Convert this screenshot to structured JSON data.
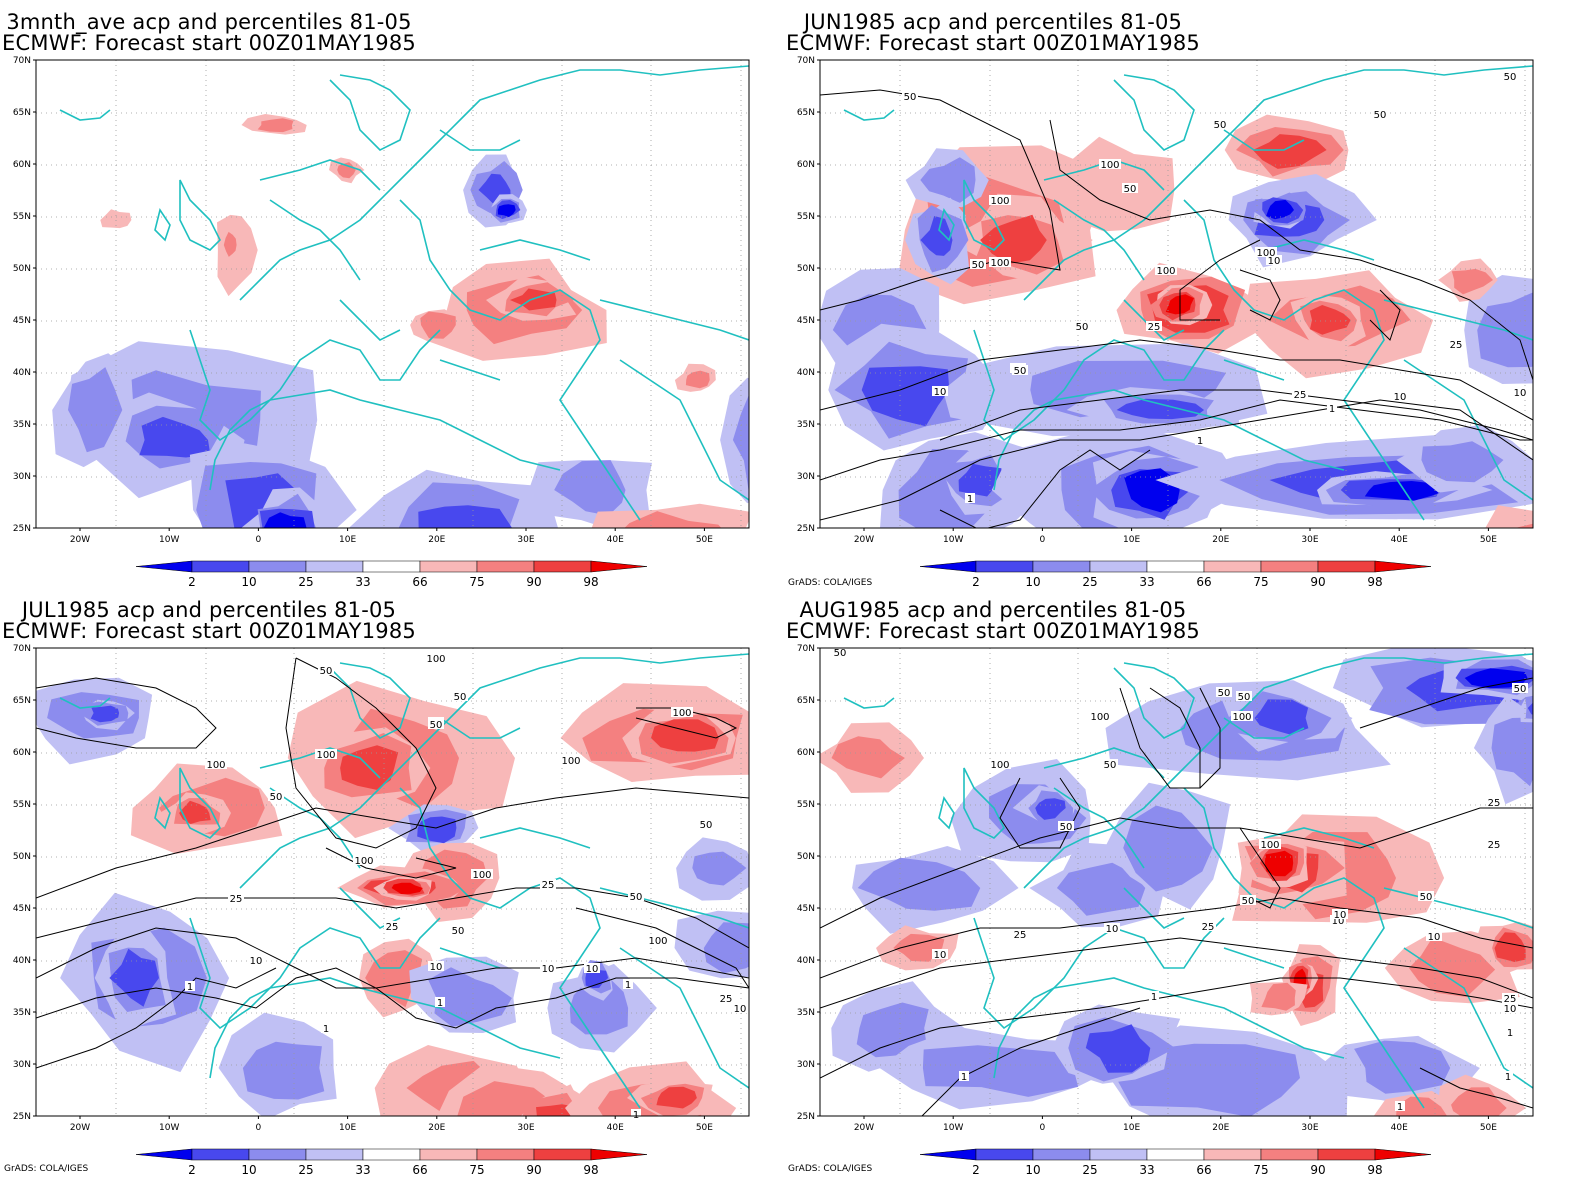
{
  "colors": {
    "blue_dark": "#0000ee",
    "blue_mid": "#4848ee",
    "blue_light": "#8c8cee",
    "blue_pale": "#c0c0f4",
    "red_pale": "#f8b8b8",
    "red_light": "#f48080",
    "red_mid": "#ee4040",
    "red_dark": "#ee0000",
    "coast": "#20c0c0",
    "contour": "#000000"
  },
  "legend": {
    "labels": [
      "2",
      "10",
      "25",
      "33",
      "66",
      "75",
      "90",
      "98"
    ]
  },
  "axes": {
    "lat_labels": [
      "70N",
      "65N",
      "60N",
      "55N",
      "50N",
      "45N",
      "40N",
      "35N",
      "30N",
      "25N"
    ],
    "lon_labels": [
      "20W",
      "10W",
      "0",
      "10E",
      "20E",
      "30E",
      "40E",
      "50E"
    ]
  },
  "credit": "GrADS: COLA/IGES",
  "panels": [
    {
      "title_line1": "3mnth_ave acp and percentiles 81-05",
      "title_line2": "ECMWF: Forecast start 00Z01MAY1985",
      "contour_labels": [],
      "show_credit": false
    },
    {
      "title_line1": "JUN1985 acp and percentiles 81-05",
      "title_line2": "ECMWF: Forecast start 00Z01MAY1985",
      "contour_labels": [
        "50",
        "50",
        "50",
        "100",
        "50",
        "100",
        "50",
        "100",
        "100",
        "50",
        "10",
        "25",
        "50",
        "25",
        "100",
        "25",
        "50",
        "10",
        "10",
        "1",
        "25",
        "10",
        "1",
        "1"
      ],
      "show_credit": true
    },
    {
      "title_line1": "JUL1985 acp and percentiles 81-05",
      "title_line2": "ECMWF: Forecast start 00Z01MAY1985",
      "contour_labels": [
        "100",
        "50",
        "50",
        "50",
        "50",
        "100",
        "100",
        "100",
        "100",
        "50",
        "50",
        "100",
        "100",
        "25",
        "25",
        "25",
        "50",
        "10",
        "50",
        "100",
        "10",
        "10",
        "10",
        "1",
        "1",
        "1",
        "25",
        "10",
        "1",
        "1"
      ],
      "show_credit": true
    },
    {
      "title_line1": "AUG1985 acp and percentiles 81-05",
      "title_line2": "ECMWF: Forecast start 00Z01MAY1985",
      "contour_labels": [
        "50",
        "50",
        "50",
        "100",
        "50",
        "100",
        "100",
        "50",
        "100",
        "50",
        "25",
        "50",
        "25",
        "10",
        "25",
        "10",
        "25",
        "50",
        "10",
        "10",
        "10",
        "1",
        "25",
        "10",
        "1",
        "1",
        "1",
        "1"
      ],
      "show_credit": true
    }
  ]
}
